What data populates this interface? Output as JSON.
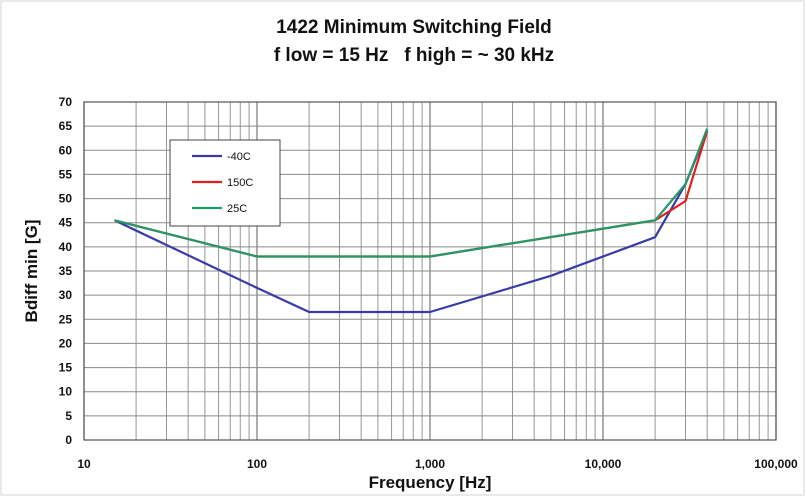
{
  "chart_data": {
    "type": "line",
    "title": "1422 Minimum Switching Field",
    "subtitle": "f low = 15 Hz   f high = ~ 30 kHz",
    "xlabel": "Frequency [Hz]",
    "ylabel": "Bdiff min [G]",
    "x_scale": "log",
    "xlim": [
      10,
      100000
    ],
    "ylim": [
      0,
      70
    ],
    "grid": true,
    "legend_position": "top-left",
    "x_ticks": [
      {
        "value": 10,
        "label": "10"
      },
      {
        "value": 100,
        "label": "100"
      },
      {
        "value": 1000,
        "label": "1,000"
      },
      {
        "value": 10000,
        "label": "10,000"
      },
      {
        "value": 100000,
        "label": "100,000"
      }
    ],
    "y_ticks": [
      0,
      5,
      10,
      15,
      20,
      25,
      30,
      35,
      40,
      45,
      50,
      55,
      60,
      65,
      70
    ],
    "series": [
      {
        "name": "-40C",
        "color": "#3a3aa8",
        "points": [
          [
            15,
            45.5
          ],
          [
            100,
            31.5
          ],
          [
            200,
            26.5
          ],
          [
            1000,
            26.5
          ],
          [
            5000,
            34
          ],
          [
            20000,
            42
          ],
          [
            30000,
            53
          ],
          [
            40000,
            64
          ]
        ]
      },
      {
        "name": "150C",
        "color": "#e02020",
        "points": [
          [
            15,
            45.5
          ],
          [
            100,
            38
          ],
          [
            1000,
            38
          ],
          [
            20000,
            45.5
          ],
          [
            30000,
            49.5
          ],
          [
            40000,
            64
          ]
        ]
      },
      {
        "name": "25C",
        "color": "#229966",
        "points": [
          [
            15,
            45.5
          ],
          [
            100,
            38
          ],
          [
            1000,
            38
          ],
          [
            20000,
            45.5
          ],
          [
            30000,
            53
          ],
          [
            40000,
            64.5
          ]
        ]
      }
    ]
  }
}
